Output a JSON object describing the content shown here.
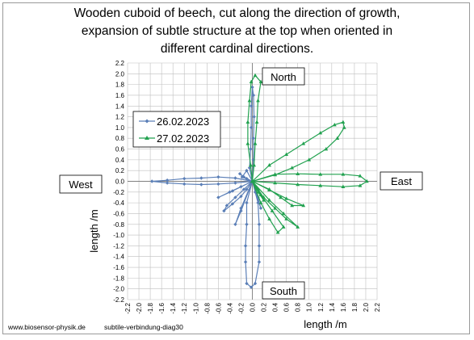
{
  "title_lines": [
    "Wooden cuboid of beech, cut along the direction of growth,",
    "expansion of subtle structure at the top when oriented in",
    "different cardinal directions."
  ],
  "footer": {
    "website": "www.biosensor-physik.de",
    "diagram_id": "subtile-verbindung-diag30"
  },
  "colors": {
    "series1": "#5b7fb7",
    "series2": "#21a14f",
    "grid": "#bfbfbf"
  },
  "chart_data": {
    "type": "line",
    "title": "Wooden cuboid of beech, cut along the direction of growth, expansion of subtle structure at the top when oriented in different cardinal directions.",
    "xlabel": "length /m",
    "ylabel": "length /m",
    "xlim": [
      -2.2,
      2.2
    ],
    "ylim": [
      -2.2,
      2.2
    ],
    "ticks": [
      "-2.2",
      "-2.0",
      "-1.8",
      "-1.6",
      "-1.4",
      "-1.2",
      "-1.0",
      "-0.8",
      "-0.6",
      "-0.4",
      "-0.2",
      "0.0",
      "0.2",
      "0.4",
      "0.6",
      "0.8",
      "1.0",
      "1.2",
      "1.4",
      "1.6",
      "1.8",
      "2.0",
      "2.2"
    ],
    "grid": true,
    "legend_position": "top-left",
    "direction_labels": {
      "north": "North",
      "south": "South",
      "east": "East",
      "west": "West"
    },
    "series": [
      {
        "name": "26.02.2023",
        "marker": "diamond",
        "color": "#5b7fb7",
        "points": [
          [
            0.0,
            0.0
          ],
          [
            -0.05,
            0.25
          ],
          [
            -0.03,
            0.6
          ],
          [
            -0.02,
            1.0
          ],
          [
            -0.02,
            1.4
          ],
          [
            0.0,
            1.75
          ],
          [
            0.02,
            1.6
          ],
          [
            0.03,
            1.2
          ],
          [
            0.02,
            0.8
          ],
          [
            0.02,
            0.4
          ],
          [
            0.0,
            0.0
          ],
          [
            -0.3,
            0.06
          ],
          [
            -0.6,
            0.08
          ],
          [
            -0.9,
            0.06
          ],
          [
            -1.2,
            0.05
          ],
          [
            -1.5,
            0.02
          ],
          [
            -1.77,
            0.0
          ],
          [
            -1.5,
            -0.03
          ],
          [
            -1.2,
            -0.05
          ],
          [
            -0.9,
            -0.06
          ],
          [
            -0.6,
            -0.05
          ],
          [
            -0.3,
            -0.03
          ],
          [
            0.0,
            0.0
          ],
          [
            -0.1,
            -0.4
          ],
          [
            -0.1,
            -0.8
          ],
          [
            -0.12,
            -1.2
          ],
          [
            -0.12,
            -1.5
          ],
          [
            -0.1,
            -1.9
          ],
          [
            -0.02,
            -1.97
          ],
          [
            0.05,
            -1.9
          ],
          [
            0.12,
            -1.5
          ],
          [
            0.12,
            -1.2
          ],
          [
            0.12,
            -0.8
          ],
          [
            0.1,
            -0.4
          ],
          [
            0.0,
            0.0
          ],
          [
            -0.1,
            -0.15
          ],
          [
            -0.2,
            -0.28
          ],
          [
            -0.35,
            -0.42
          ],
          [
            -0.5,
            -0.55
          ],
          [
            -0.45,
            -0.45
          ],
          [
            -0.3,
            -0.3
          ],
          [
            -0.15,
            -0.15
          ],
          [
            0.0,
            0.0
          ],
          [
            -0.15,
            0.08
          ],
          [
            -0.22,
            0.14
          ],
          [
            -0.1,
            0.05
          ],
          [
            0.0,
            0.0
          ],
          [
            -0.2,
            -0.1
          ],
          [
            -0.4,
            -0.2
          ],
          [
            -0.6,
            -0.3
          ],
          [
            -0.35,
            -0.18
          ],
          [
            0.0,
            0.0
          ],
          [
            -0.1,
            0.2
          ],
          [
            -0.18,
            0.08
          ],
          [
            0.0,
            0.0
          ],
          [
            -0.2,
            -0.5
          ],
          [
            -0.3,
            -0.8
          ],
          [
            -0.2,
            -0.55
          ],
          [
            0.0,
            0.0
          ],
          [
            0.1,
            -0.3
          ],
          [
            0.15,
            -0.5
          ],
          [
            0.05,
            -0.2
          ],
          [
            0.0,
            0.0
          ]
        ]
      },
      {
        "name": "27.02.2023",
        "marker": "triangle",
        "color": "#21a14f",
        "points": [
          [
            0.0,
            0.0
          ],
          [
            -0.03,
            0.3
          ],
          [
            -0.08,
            0.7
          ],
          [
            -0.08,
            1.1
          ],
          [
            -0.05,
            1.5
          ],
          [
            -0.02,
            1.85
          ],
          [
            0.05,
            1.97
          ],
          [
            0.15,
            1.85
          ],
          [
            0.1,
            1.5
          ],
          [
            0.08,
            1.1
          ],
          [
            0.05,
            0.7
          ],
          [
            0.03,
            0.3
          ],
          [
            0.0,
            0.0
          ],
          [
            0.3,
            0.3
          ],
          [
            0.6,
            0.5
          ],
          [
            0.9,
            0.7
          ],
          [
            1.2,
            0.9
          ],
          [
            1.45,
            1.05
          ],
          [
            1.6,
            1.1
          ],
          [
            1.62,
            1.0
          ],
          [
            1.5,
            0.8
          ],
          [
            1.3,
            0.6
          ],
          [
            1.0,
            0.4
          ],
          [
            0.7,
            0.25
          ],
          [
            0.4,
            0.12
          ],
          [
            0.0,
            0.0
          ],
          [
            0.4,
            0.13
          ],
          [
            0.8,
            0.14
          ],
          [
            1.2,
            0.13
          ],
          [
            1.6,
            0.13
          ],
          [
            1.9,
            0.1
          ],
          [
            2.02,
            0.0
          ],
          [
            1.9,
            -0.08
          ],
          [
            1.6,
            -0.1
          ],
          [
            1.2,
            -0.08
          ],
          [
            0.8,
            -0.06
          ],
          [
            0.4,
            -0.03
          ],
          [
            0.0,
            0.0
          ],
          [
            0.3,
            -0.15
          ],
          [
            0.5,
            -0.3
          ],
          [
            0.7,
            -0.45
          ],
          [
            0.9,
            -0.45
          ],
          [
            0.6,
            -0.32
          ],
          [
            0.3,
            -0.16
          ],
          [
            0.0,
            0.0
          ],
          [
            0.2,
            -0.3
          ],
          [
            0.4,
            -0.5
          ],
          [
            0.6,
            -0.7
          ],
          [
            0.8,
            -0.85
          ],
          [
            0.55,
            -0.6
          ],
          [
            0.3,
            -0.35
          ],
          [
            0.0,
            0.0
          ],
          [
            0.15,
            -0.4
          ],
          [
            0.3,
            -0.7
          ],
          [
            0.45,
            -0.95
          ],
          [
            0.55,
            -0.85
          ],
          [
            0.35,
            -0.55
          ],
          [
            0.15,
            -0.25
          ],
          [
            0.0,
            0.0
          ],
          [
            0.1,
            -0.2
          ],
          [
            0.2,
            -0.35
          ],
          [
            0.1,
            -0.15
          ],
          [
            0.0,
            0.0
          ]
        ]
      }
    ]
  }
}
